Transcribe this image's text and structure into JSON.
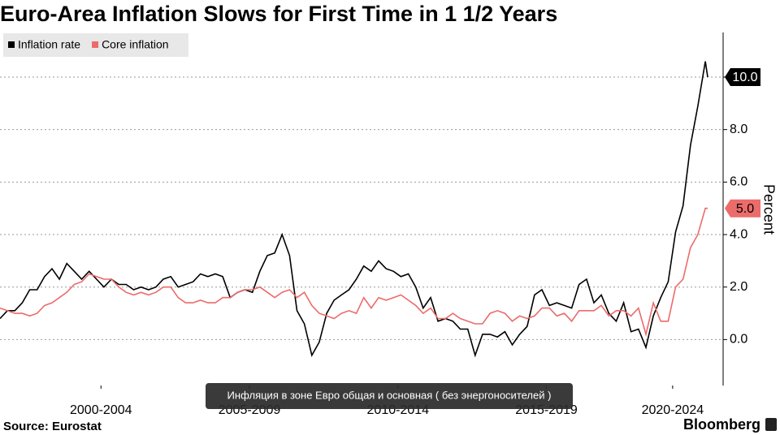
{
  "chart_data": {
    "type": "line",
    "title": "Euro-Area Inflation Slows for First Time in 1 1/2 Years",
    "y_label": "Percent",
    "source": "Source: Eurostat",
    "brand": "Bloomberg",
    "caption": "Инфляция в зоне Евро общая и основная ( без энергоносителей )",
    "x": [
      1999,
      1999.25,
      1999.5,
      1999.75,
      2000,
      2000.25,
      2000.5,
      2000.75,
      2001,
      2001.25,
      2001.5,
      2001.75,
      2002,
      2002.25,
      2002.5,
      2002.75,
      2003,
      2003.25,
      2003.5,
      2003.75,
      2004,
      2004.25,
      2004.5,
      2004.75,
      2005,
      2005.25,
      2005.5,
      2005.75,
      2006,
      2006.25,
      2006.5,
      2006.75,
      2007,
      2007.25,
      2007.5,
      2007.75,
      2008,
      2008.25,
      2008.5,
      2008.75,
      2009,
      2009.25,
      2009.5,
      2009.75,
      2010,
      2010.25,
      2010.5,
      2010.75,
      2011,
      2011.25,
      2011.5,
      2011.75,
      2012,
      2012.25,
      2012.5,
      2012.75,
      2013,
      2013.25,
      2013.5,
      2013.75,
      2014,
      2014.25,
      2014.5,
      2014.75,
      2015,
      2015.25,
      2015.5,
      2015.75,
      2016,
      2016.25,
      2016.5,
      2016.75,
      2017,
      2017.25,
      2017.5,
      2017.75,
      2018,
      2018.25,
      2018.5,
      2018.75,
      2019,
      2019.25,
      2019.5,
      2019.75,
      2020,
      2020.25,
      2020.5,
      2020.75,
      2021,
      2021.25,
      2021.5,
      2021.75,
      2022,
      2022.25,
      2022.5,
      2022.75,
      2022.83
    ],
    "series": [
      {
        "name": "Inflation rate",
        "color": "#000000",
        "values": [
          0.8,
          1.1,
          1.1,
          1.4,
          1.9,
          1.9,
          2.4,
          2.7,
          2.3,
          2.9,
          2.6,
          2.3,
          2.6,
          2.3,
          2.0,
          2.3,
          2.1,
          2.1,
          1.9,
          2.0,
          1.9,
          2.0,
          2.3,
          2.4,
          2.0,
          2.1,
          2.2,
          2.5,
          2.4,
          2.5,
          2.4,
          1.6,
          1.8,
          1.9,
          1.8,
          2.6,
          3.2,
          3.3,
          4.0,
          3.2,
          1.1,
          0.6,
          -0.6,
          -0.1,
          1.0,
          1.5,
          1.7,
          1.9,
          2.3,
          2.8,
          2.6,
          3.0,
          2.7,
          2.6,
          2.4,
          2.5,
          2.0,
          1.2,
          1.6,
          0.7,
          0.8,
          0.7,
          0.4,
          0.4,
          -0.6,
          0.2,
          0.2,
          0.1,
          0.3,
          -0.2,
          0.2,
          0.5,
          1.7,
          1.9,
          1.3,
          1.4,
          1.3,
          1.2,
          2.1,
          2.3,
          1.4,
          1.7,
          1.0,
          0.7,
          1.4,
          0.3,
          0.4,
          -0.3,
          0.9,
          1.6,
          2.2,
          4.1,
          5.1,
          7.4,
          8.9,
          10.6,
          10.0
        ],
        "value_labels": [
          null,
          null,
          null,
          null,
          null,
          null,
          null,
          null,
          null,
          null,
          null,
          null,
          null,
          null,
          null,
          null,
          null,
          null,
          null,
          null,
          null,
          null,
          null,
          null,
          null,
          null,
          null,
          null,
          null,
          null,
          null,
          null,
          null,
          null,
          null,
          null,
          null,
          null,
          null,
          null,
          null,
          null,
          null,
          null,
          null,
          null,
          null,
          null,
          null,
          null,
          null,
          null,
          null,
          null,
          null,
          null,
          null,
          null,
          null,
          null,
          null,
          null,
          null,
          null,
          null,
          null,
          null,
          null,
          null,
          null,
          null,
          null,
          null,
          null,
          null,
          null,
          null,
          null,
          null,
          null,
          null,
          null,
          null,
          null,
          null,
          null,
          null,
          null,
          null,
          null,
          null,
          null,
          null,
          null,
          null,
          null,
          "10.0"
        ]
      },
      {
        "name": "Core inflation",
        "color": "#ec6b6b",
        "values": [
          1.2,
          1.1,
          1.0,
          1.0,
          0.9,
          1.0,
          1.3,
          1.4,
          1.6,
          1.8,
          2.1,
          2.2,
          2.5,
          2.4,
          2.3,
          2.3,
          2.0,
          1.8,
          1.7,
          1.8,
          1.7,
          1.8,
          2.0,
          2.0,
          1.6,
          1.4,
          1.4,
          1.5,
          1.4,
          1.4,
          1.6,
          1.6,
          1.8,
          1.9,
          1.9,
          2.0,
          1.8,
          1.6,
          1.8,
          1.9,
          1.6,
          1.8,
          1.3,
          1.0,
          0.9,
          0.8,
          1.0,
          1.1,
          1.0,
          1.6,
          1.2,
          1.6,
          1.5,
          1.6,
          1.7,
          1.5,
          1.3,
          1.0,
          1.2,
          0.8,
          0.8,
          1.0,
          0.8,
          0.7,
          0.6,
          0.6,
          1.0,
          1.1,
          1.0,
          0.7,
          0.9,
          0.8,
          0.9,
          1.2,
          1.2,
          0.9,
          1.0,
          0.7,
          1.1,
          1.1,
          1.1,
          1.3,
          0.9,
          1.1,
          1.1,
          0.9,
          1.2,
          0.2,
          1.4,
          0.7,
          0.7,
          2.0,
          2.3,
          3.5,
          4.0,
          5.0,
          5.0
        ],
        "value_labels": [
          null,
          null,
          null,
          null,
          null,
          null,
          null,
          null,
          null,
          null,
          null,
          null,
          null,
          null,
          null,
          null,
          null,
          null,
          null,
          null,
          null,
          null,
          null,
          null,
          null,
          null,
          null,
          null,
          null,
          null,
          null,
          null,
          null,
          null,
          null,
          null,
          null,
          null,
          null,
          null,
          null,
          null,
          null,
          null,
          null,
          null,
          null,
          null,
          null,
          null,
          null,
          null,
          null,
          null,
          null,
          null,
          null,
          null,
          null,
          null,
          null,
          null,
          null,
          null,
          null,
          null,
          null,
          null,
          null,
          null,
          null,
          null,
          null,
          null,
          null,
          null,
          null,
          null,
          null,
          null,
          null,
          null,
          null,
          null,
          null,
          null,
          null,
          null,
          null,
          null,
          null,
          null,
          null,
          null,
          null,
          null,
          "5.0"
        ]
      }
    ],
    "xlim": [
      1999,
      2023.35
    ],
    "xticks": [
      {
        "value": 2002.4,
        "label": "2000-2004"
      },
      {
        "value": 2007.4,
        "label": "2005-2009"
      },
      {
        "value": 2012.4,
        "label": "2010-2014"
      },
      {
        "value": 2017.4,
        "label": "2015-2019"
      },
      {
        "value": 2021.65,
        "label": "2020-2024"
      }
    ],
    "ylim": [
      -1.75,
      11.7
    ],
    "yticks": [
      {
        "value": 0,
        "label": "0.0"
      },
      {
        "value": 2,
        "label": "2.0"
      },
      {
        "value": 4,
        "label": "4.0"
      },
      {
        "value": 6,
        "label": "6.0"
      },
      {
        "value": 8,
        "label": "8.0"
      },
      {
        "value": 10,
        "label": "10.0"
      }
    ],
    "grid": true,
    "legend": "top-left"
  }
}
